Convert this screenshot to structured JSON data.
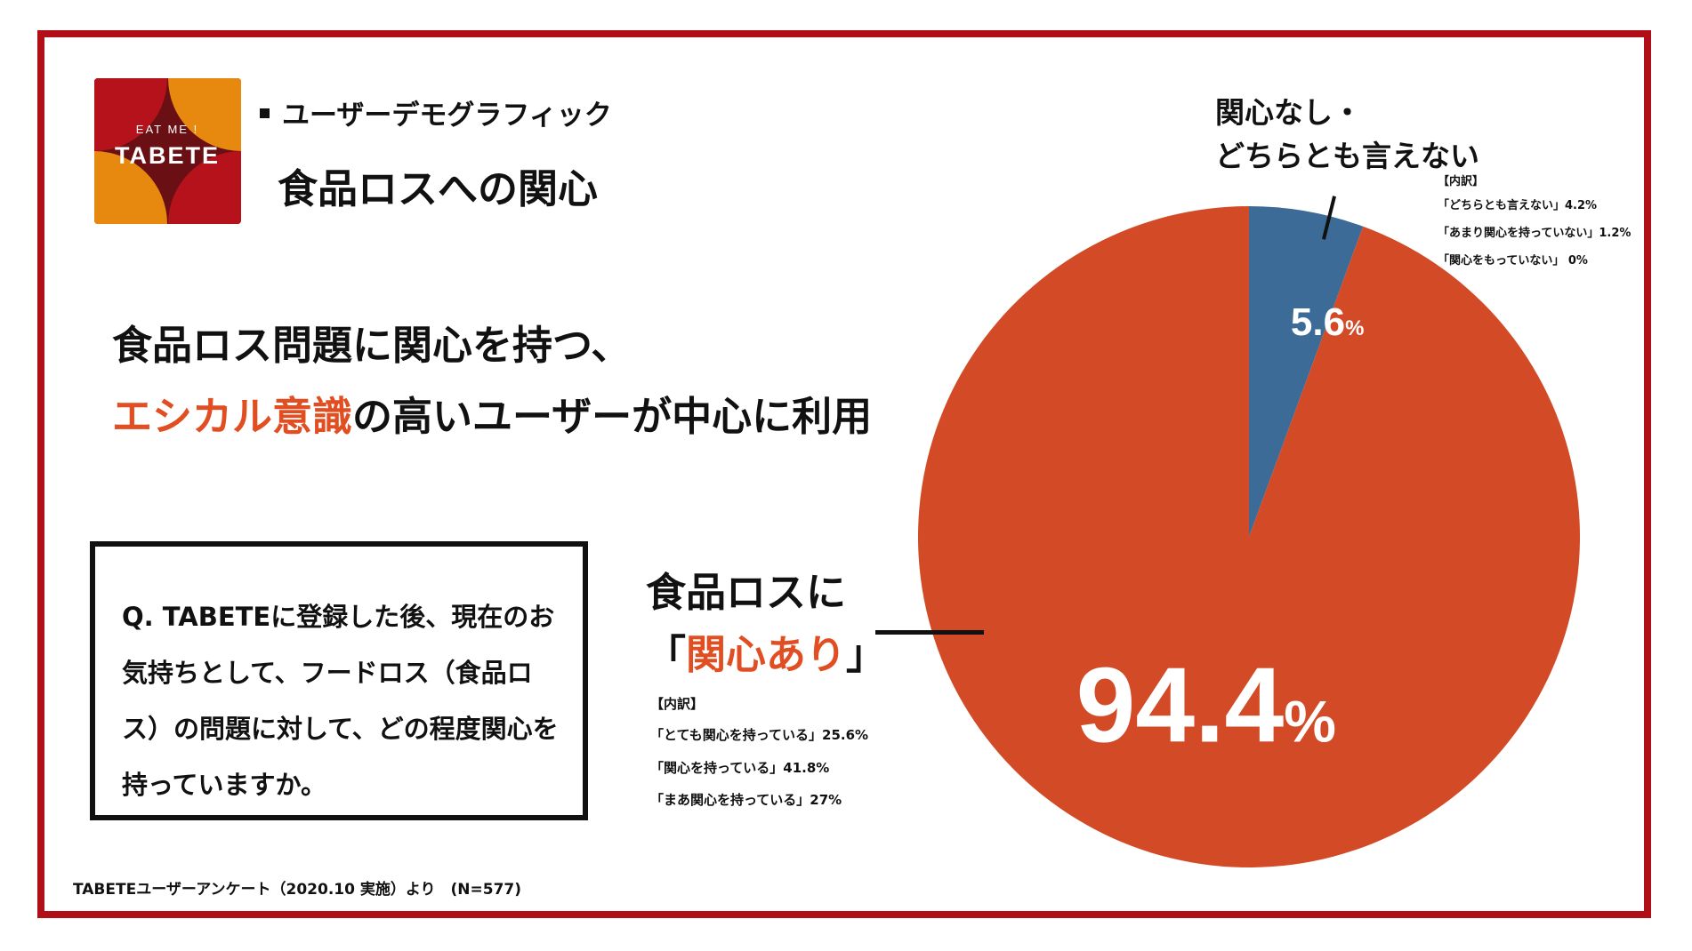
{
  "header": {
    "logo_text_top": "EAT ME !",
    "logo_text_main": "TABETE",
    "section_label": "ユーザーデモグラフィック",
    "page_title": "食品ロスへの関心"
  },
  "headline": {
    "line1": "食品ロス問題に関心を持つ、",
    "line2_accent": "エシカル意識",
    "line2_rest": "の高いユーザーが中心に利用"
  },
  "question": {
    "text": "Q. TABETEに登録した後、現在のお気持ちとして、フードロス（食品ロス）の問題に対して、どの程度関心を持っていますか。"
  },
  "footnote": "TABETEユーザーアンケート（2020.10 実施）より　(N=577)",
  "interest_yes": {
    "label_line1": "食品ロスに",
    "quote_open": "「",
    "label_accent": "関心あり",
    "quote_close": "」",
    "breakdown_title": "【内訳】",
    "breakdown": [
      "「とても関心を持っている」25.6%",
      "「関心を持っている」41.8%",
      "「まあ関心を持っている」27%"
    ]
  },
  "interest_no": {
    "label_line1": "関心なし・",
    "label_line2": "どちらとも言えない",
    "breakdown_title": "【内訳】",
    "breakdown": [
      "「どちらとも言えない」4.2%",
      "「あまり関心を持っていない」1.2%",
      "「関心をもっていない」 0%"
    ]
  },
  "chart_data": {
    "type": "pie",
    "start": "12 o'clock, clockwise",
    "slices": [
      {
        "label": "関心なし・どちらとも言えない",
        "value": 5.6,
        "value_text": "5.6",
        "unit": "%",
        "color": "#3b6b96"
      },
      {
        "label": "関心あり",
        "value": 94.4,
        "value_text": "94.4",
        "unit": "%",
        "color": "#d34a26"
      }
    ]
  },
  "colors": {
    "frame": "#b10f17",
    "accent": "#e04e22",
    "logo_dark": "#6a0f13",
    "logo_red": "#b5121b",
    "logo_orange": "#e8890f"
  }
}
